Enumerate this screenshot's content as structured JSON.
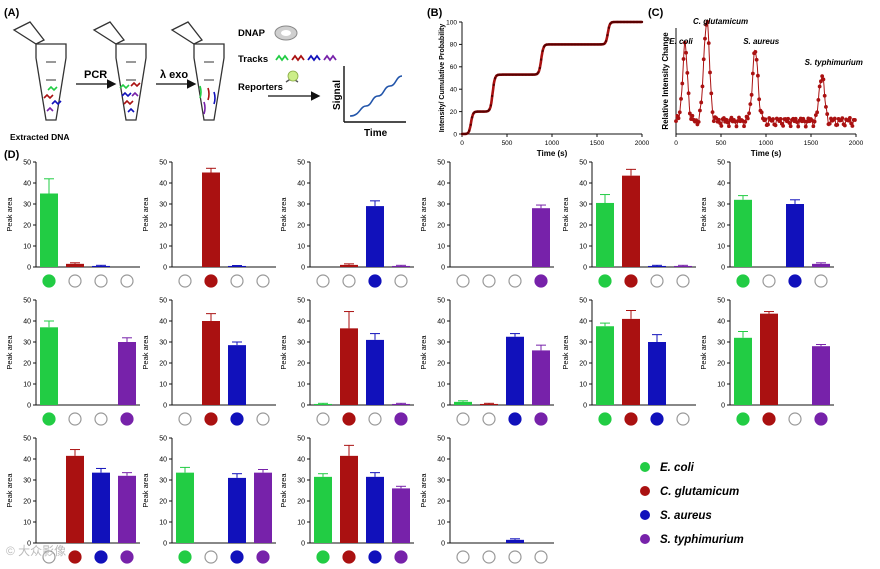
{
  "colors": {
    "ecoli": "#22cc44",
    "cglut": "#aa1111",
    "saureus": "#1111bb",
    "styph": "#7722aa",
    "trace": "#aa1111"
  },
  "panel_labels": {
    "a": "(A)",
    "b": "(B)",
    "c": "(C)",
    "d": "(D)"
  },
  "schematic": {
    "extracted_dna": "Extracted DNA",
    "pcr": "PCR",
    "lambda_exo": "λ exo",
    "dnap": "DNAP",
    "tracks": "Tracks",
    "reporters": "Reporters",
    "signal": "Signal",
    "time": "Time"
  },
  "legend": [
    {
      "key": "ecoli",
      "label": "E. coli"
    },
    {
      "key": "cglut",
      "label": "C. glutamicum"
    },
    {
      "key": "saureus",
      "label": "S. aureus"
    },
    {
      "key": "styph",
      "label": "S. typhimurium"
    }
  ],
  "watermark": "© 大众影像",
  "chart_data": [
    {
      "id": "B",
      "type": "line",
      "xlabel": "Time (s)",
      "ylabel": "Intensity/ Cumulative Probability",
      "xlim": [
        0,
        2000
      ],
      "ylim": [
        0,
        100
      ],
      "xticks": [
        0,
        500,
        1000,
        1500,
        2000
      ],
      "yticks": [
        0,
        20,
        40,
        60,
        80,
        100
      ],
      "steps": [
        {
          "center": 100,
          "width": 45,
          "height": 20
        },
        {
          "center": 340,
          "width": 50,
          "height": 33
        },
        {
          "center": 880,
          "width": 50,
          "height": 27
        },
        {
          "center": 1620,
          "width": 45,
          "height": 20
        }
      ]
    },
    {
      "id": "C",
      "type": "line",
      "xlabel": "Time (s)",
      "ylabel": "Relative Intensity Change",
      "xlim": [
        0,
        2000
      ],
      "ylim": [
        0,
        1
      ],
      "xticks": [
        0,
        500,
        1000,
        1500,
        2000
      ],
      "peaks": [
        {
          "center": 100,
          "width": 40,
          "height": 0.7,
          "label": "E. coli"
        },
        {
          "center": 340,
          "width": 45,
          "height": 0.95,
          "label": "C. glutamicum"
        },
        {
          "center": 880,
          "width": 45,
          "height": 0.65,
          "label": "S. aureus"
        },
        {
          "center": 1620,
          "width": 40,
          "height": 0.45,
          "label": "S. typhimurium"
        }
      ]
    },
    {
      "id": "D",
      "type": "bar",
      "ylabel": "Peak area",
      "ylim": [
        0,
        50
      ],
      "yticks": [
        0,
        10,
        20,
        30,
        40,
        50
      ],
      "categories": [
        "E. coli",
        "C. glutamicum",
        "S. aureus",
        "S. typhimurium"
      ],
      "series": [
        {
          "name": "Ec",
          "present": [
            true,
            false,
            false,
            false
          ],
          "values": [
            35,
            1.5,
            0.5,
            0
          ],
          "errors": [
            7,
            0.5,
            0.3,
            0
          ]
        },
        {
          "name": "Cg",
          "present": [
            false,
            true,
            false,
            false
          ],
          "values": [
            0,
            45,
            0.5,
            0
          ],
          "errors": [
            0,
            2,
            0.2,
            0
          ]
        },
        {
          "name": "Sa",
          "present": [
            false,
            false,
            true,
            false
          ],
          "values": [
            0,
            1,
            29,
            0.5
          ],
          "errors": [
            0,
            0.5,
            2.5,
            0.3
          ]
        },
        {
          "name": "St",
          "present": [
            false,
            false,
            false,
            true
          ],
          "values": [
            0,
            0,
            0,
            28
          ],
          "errors": [
            0,
            0,
            0,
            1.5
          ]
        },
        {
          "name": "Ec+Cg",
          "present": [
            true,
            true,
            false,
            false
          ],
          "values": [
            30.5,
            43.5,
            0.5,
            0.5
          ],
          "errors": [
            4,
            3,
            0.3,
            0.3
          ]
        },
        {
          "name": "Ec+Sa",
          "present": [
            true,
            false,
            true,
            false
          ],
          "values": [
            32,
            0,
            30,
            1.5
          ],
          "errors": [
            2,
            0,
            2,
            0.5
          ]
        },
        {
          "name": "Ec+St",
          "present": [
            true,
            false,
            false,
            true
          ],
          "values": [
            37,
            0,
            0,
            30
          ],
          "errors": [
            3,
            0,
            0,
            2
          ]
        },
        {
          "name": "Cg+Sa",
          "present": [
            false,
            true,
            true,
            false
          ],
          "values": [
            0,
            40,
            28.5,
            0
          ],
          "errors": [
            0,
            3.5,
            1.5,
            0
          ]
        },
        {
          "name": "Cg+St",
          "present": [
            false,
            true,
            false,
            true
          ],
          "values": [
            0.5,
            36.5,
            31,
            0.5
          ],
          "errors": [
            0.3,
            8,
            3,
            0.3
          ]
        },
        {
          "name": "Sa+St",
          "present": [
            false,
            false,
            true,
            true
          ],
          "values": [
            1.5,
            0.5,
            32.5,
            26
          ],
          "errors": [
            0.5,
            0.3,
            1.5,
            2.5
          ]
        },
        {
          "name": "Ec+Cg+Sa",
          "present": [
            true,
            true,
            true,
            false
          ],
          "values": [
            37.5,
            41,
            30,
            0
          ],
          "errors": [
            1.5,
            4,
            3.5,
            0
          ]
        },
        {
          "name": "Ec+Cg+St",
          "present": [
            true,
            true,
            false,
            true
          ],
          "values": [
            32,
            43.5,
            0,
            28
          ],
          "errors": [
            3,
            1,
            0,
            0.8
          ]
        },
        {
          "name": "Cg+Sa+St",
          "present": [
            false,
            true,
            true,
            true
          ],
          "values": [
            0,
            41.5,
            33.5,
            32
          ],
          "errors": [
            0,
            3,
            2,
            1.5
          ]
        },
        {
          "name": "Ec+Sa+St",
          "present": [
            true,
            false,
            true,
            true
          ],
          "values": [
            33.5,
            0,
            31,
            33.5
          ],
          "errors": [
            2.5,
            0,
            2,
            1.5
          ]
        },
        {
          "name": "Ec+Cg+Sa+St",
          "present": [
            true,
            true,
            true,
            true
          ],
          "values": [
            31.5,
            41.5,
            31.5,
            26
          ],
          "errors": [
            1.5,
            5,
            2,
            1
          ]
        },
        {
          "name": "None",
          "present": [
            false,
            false,
            false,
            false
          ],
          "values": [
            0,
            0,
            1.5,
            0
          ],
          "errors": [
            0,
            0,
            0.5,
            0
          ]
        }
      ]
    }
  ]
}
